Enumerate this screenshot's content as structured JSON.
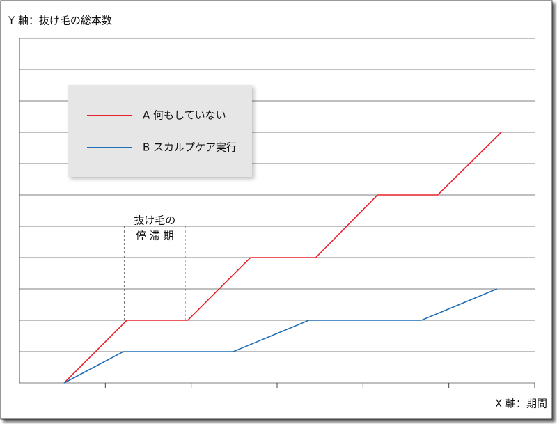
{
  "chart_data": {
    "type": "line",
    "y_label": "Y 軸：抜け毛の総本数",
    "x_label": "X 軸：期間",
    "xlim": [
      0,
      6
    ],
    "xticks": [
      1,
      2,
      3,
      4,
      5,
      6
    ],
    "ylim": [
      0,
      11
    ],
    "yticks": [
      0,
      1,
      2,
      3,
      4,
      5,
      6,
      7,
      8,
      9,
      10,
      11
    ],
    "grid": true,
    "legend_text_color": "#e8202a",
    "series": [
      {
        "name": "A 何もしていない",
        "color": "#e8202a",
        "x": [
          0.52,
          1.25,
          1.96,
          2.69,
          3.45,
          4.17,
          4.87,
          5.61
        ],
        "values": [
          0,
          2,
          2,
          4,
          4,
          6,
          6,
          8
        ]
      },
      {
        "name": "B スカルプケア実行",
        "color": "#1f6db5",
        "x": [
          0.52,
          1.21,
          2.49,
          3.37,
          4.68,
          5.56
        ],
        "values": [
          0,
          1,
          1,
          2,
          2,
          3
        ]
      }
    ],
    "annotation": {
      "text": [
        "抜け毛の",
        "停 滞 期"
      ],
      "x": [
        1.22,
        1.93
      ]
    }
  }
}
